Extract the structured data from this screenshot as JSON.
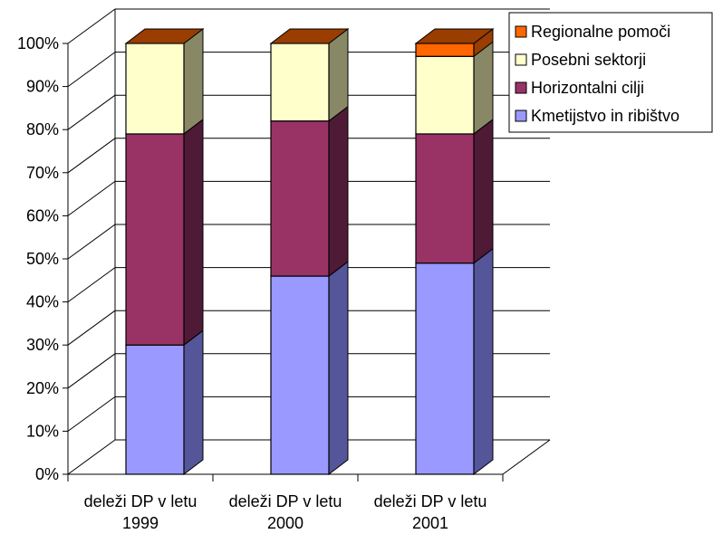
{
  "chart_data": {
    "type": "bar",
    "stacked": true,
    "percent": true,
    "three_d": true,
    "categories": [
      [
        "deleži DP v letu",
        "1999"
      ],
      [
        "deleži DP v letu",
        "2000"
      ],
      [
        "deleži DP v letu",
        "2001"
      ]
    ],
    "series": [
      {
        "name": "Kmetijstvo in ribištvo",
        "values": [
          30,
          46,
          49
        ],
        "color": "#9999ff",
        "side": "#555599"
      },
      {
        "name": "Horizontalni cilji",
        "values": [
          49,
          36,
          30
        ],
        "color": "#993366",
        "side": "#4f1a36"
      },
      {
        "name": "Posebni sektorji",
        "values": [
          21,
          18,
          18
        ],
        "color": "#ffffcc",
        "side": "#888866"
      },
      {
        "name": "Regionalne pomoči",
        "values": [
          0,
          0,
          3
        ],
        "color": "#ff6600",
        "side": "#993d00"
      }
    ],
    "legend_order": [
      "Regionalne pomoči",
      "Posebni sektorji",
      "Horizontalni cilji",
      "Kmetijstvo in ribištvo"
    ],
    "yticks": [
      "0%",
      "10%",
      "20%",
      "30%",
      "40%",
      "50%",
      "60%",
      "70%",
      "80%",
      "90%",
      "100%"
    ],
    "ylim": [
      0,
      100
    ],
    "legend_position": "top-right",
    "grid": true
  }
}
